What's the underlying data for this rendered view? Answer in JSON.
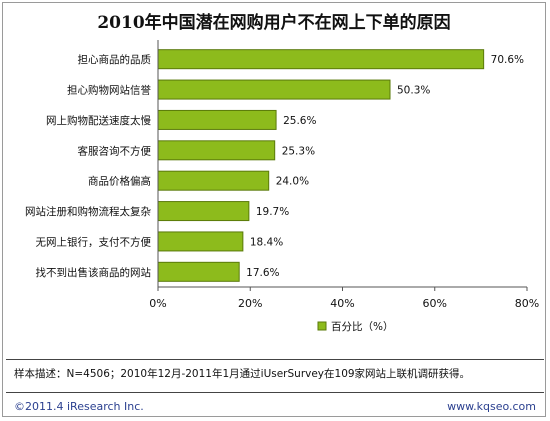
{
  "title": "2010年中国潜在网购用户不在网上下单的原因",
  "chart_data": {
    "type": "bar",
    "orientation": "horizontal",
    "categories": [
      "担心商品的品质",
      "担心购物网站信誉",
      "网上购物配送速度太慢",
      "客服咨询不方便",
      "商品价格偏高",
      "网站注册和购物流程太复杂",
      "无网上银行，支付不方便",
      "找不到出售该商品的网站"
    ],
    "series": [
      {
        "name": "百分比（%）",
        "values": [
          70.6,
          50.3,
          25.6,
          25.3,
          24.0,
          19.7,
          18.4,
          17.6
        ]
      }
    ],
    "value_labels": [
      "70.6%",
      "50.3%",
      "25.6%",
      "25.3%",
      "24.0%",
      "19.7%",
      "18.4%",
      "17.6%"
    ],
    "xlim": [
      0,
      80
    ],
    "xticks": [
      0,
      20,
      40,
      60,
      80
    ],
    "xtick_labels": [
      "0%",
      "20%",
      "40%",
      "60%",
      "80%"
    ],
    "grid": false,
    "legend": "bottom-center",
    "bar_color": "#8dbb1c",
    "bar_border": "#5a7a0a"
  },
  "note": "样本描述：N=4506；2010年12月-2011年1月通过iUserSurvey在109家网站上联机调研获得。",
  "footer": {
    "copyright": "©2011.4 iResearch Inc.",
    "website": "www.kqseo.com"
  }
}
